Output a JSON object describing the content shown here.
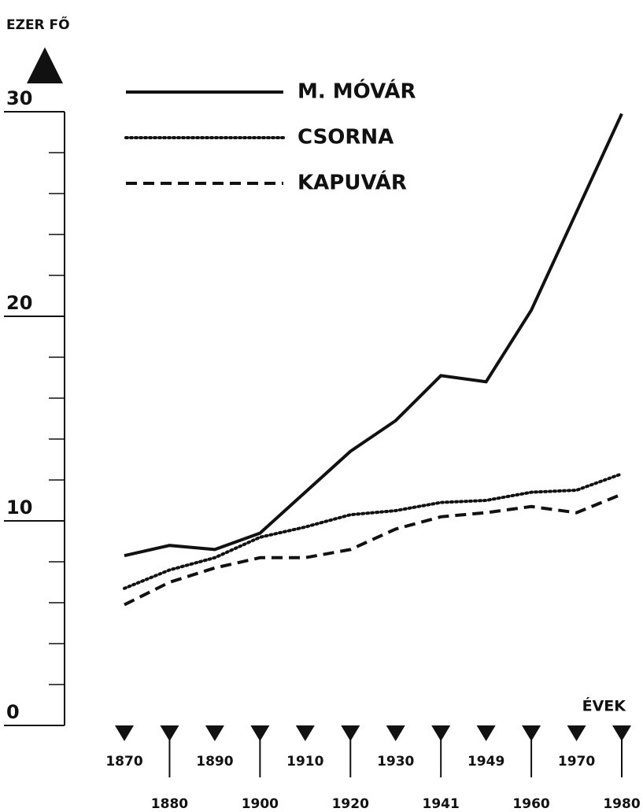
{
  "chart_data": {
    "type": "line",
    "y_label": "EZER FŐ",
    "x_label": "ÉVEK",
    "categories": [
      "1870",
      "1880",
      "1890",
      "1900",
      "1910",
      "1920",
      "1930",
      "1941",
      "1949",
      "1960",
      "1970",
      "1980"
    ],
    "series": [
      {
        "name": "M. MÓVÁR",
        "color": "#111111",
        "style": "solid",
        "values": [
          8.3,
          8.8,
          8.6,
          9.4,
          11.4,
          13.4,
          14.9,
          17.1,
          16.8,
          20.3,
          25.1,
          29.9
        ]
      },
      {
        "name": "CSORNA",
        "color": "#111111",
        "style": "dotted",
        "values": [
          6.7,
          7.6,
          8.2,
          9.2,
          9.7,
          10.3,
          10.5,
          10.9,
          11.0,
          11.4,
          11.5,
          12.3
        ]
      },
      {
        "name": "KAPUVÁR",
        "color": "#111111",
        "style": "dashed",
        "values": [
          5.9,
          7.0,
          7.7,
          8.2,
          8.2,
          8.6,
          9.6,
          10.2,
          10.4,
          10.7,
          10.4,
          11.3
        ]
      }
    ],
    "ylim": [
      0,
      30
    ],
    "yticks": [
      0,
      10,
      20,
      30
    ],
    "yminorticks": [
      2,
      4,
      6,
      8,
      12,
      14,
      16,
      18,
      22,
      24,
      26,
      28
    ]
  }
}
